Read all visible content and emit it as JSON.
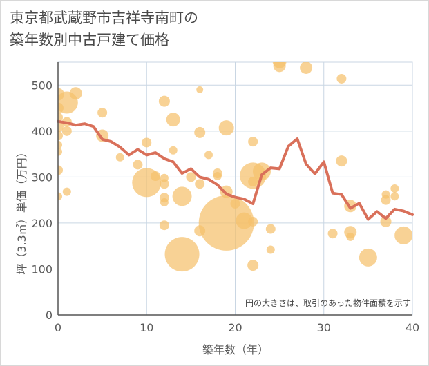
{
  "header": {
    "title_line1": "東京都武蔵野市吉祥寺南町の",
    "title_line2": "築年数別中古戸建て価格"
  },
  "colors": {
    "bubble": "#f5c16c",
    "line": "#d9705a",
    "grid": "#c9d6e3",
    "axis": "#555555"
  },
  "chart_data": {
    "type": "scatter",
    "title": "東京都武蔵野市吉祥寺南町の築年数別中古戸建て価格",
    "xlabel": "築年数（年）",
    "ylabel": "坪（3.3㎡）単価（万円）",
    "xlim": [
      0,
      40
    ],
    "ylim": [
      0,
      550
    ],
    "xticks": [
      0,
      10,
      20,
      30,
      40
    ],
    "yticks": [
      0,
      100,
      200,
      300,
      400,
      500
    ],
    "grid": true,
    "note": "円の大きさは、取引のあった物件面積を示す",
    "bubbles": [
      {
        "x": 0,
        "y": 480,
        "r": 9
      },
      {
        "x": 0,
        "y": 450,
        "r": 8
      },
      {
        "x": 0,
        "y": 430,
        "r": 7
      },
      {
        "x": 0,
        "y": 410,
        "r": 8
      },
      {
        "x": 0,
        "y": 390,
        "r": 7
      },
      {
        "x": 0,
        "y": 370,
        "r": 6
      },
      {
        "x": 0,
        "y": 355,
        "r": 6
      },
      {
        "x": 0,
        "y": 315,
        "r": 7
      },
      {
        "x": 0,
        "y": 258,
        "r": 6
      },
      {
        "x": 1,
        "y": 462,
        "r": 16
      },
      {
        "x": 1,
        "y": 420,
        "r": 7
      },
      {
        "x": 1,
        "y": 400,
        "r": 7
      },
      {
        "x": 1,
        "y": 268,
        "r": 6
      },
      {
        "x": 2,
        "y": 482,
        "r": 9
      },
      {
        "x": 5,
        "y": 440,
        "r": 7
      },
      {
        "x": 5,
        "y": 390,
        "r": 9
      },
      {
        "x": 7,
        "y": 343,
        "r": 6
      },
      {
        "x": 9,
        "y": 327,
        "r": 7
      },
      {
        "x": 10,
        "y": 375,
        "r": 7
      },
      {
        "x": 10,
        "y": 288,
        "r": 21
      },
      {
        "x": 11,
        "y": 302,
        "r": 7
      },
      {
        "x": 12,
        "y": 465,
        "r": 8
      },
      {
        "x": 12,
        "y": 298,
        "r": 6
      },
      {
        "x": 12,
        "y": 285,
        "r": 7
      },
      {
        "x": 12,
        "y": 255,
        "r": 7
      },
      {
        "x": 12,
        "y": 245,
        "r": 6
      },
      {
        "x": 12,
        "y": 195,
        "r": 7
      },
      {
        "x": 13,
        "y": 425,
        "r": 10
      },
      {
        "x": 13,
        "y": 358,
        "r": 6
      },
      {
        "x": 14,
        "y": 258,
        "r": 14
      },
      {
        "x": 14,
        "y": 132,
        "r": 25
      },
      {
        "x": 15,
        "y": 300,
        "r": 7
      },
      {
        "x": 16,
        "y": 490,
        "r": 5
      },
      {
        "x": 16,
        "y": 397,
        "r": 8
      },
      {
        "x": 16,
        "y": 285,
        "r": 7
      },
      {
        "x": 16,
        "y": 183,
        "r": 8
      },
      {
        "x": 17,
        "y": 348,
        "r": 6
      },
      {
        "x": 18,
        "y": 308,
        "r": 7
      },
      {
        "x": 18,
        "y": 302,
        "r": 6
      },
      {
        "x": 19,
        "y": 407,
        "r": 11
      },
      {
        "x": 19,
        "y": 268,
        "r": 9
      },
      {
        "x": 19,
        "y": 200,
        "r": 40
      },
      {
        "x": 20,
        "y": 242,
        "r": 7
      },
      {
        "x": 21,
        "y": 205,
        "r": 12
      },
      {
        "x": 22,
        "y": 377,
        "r": 7
      },
      {
        "x": 22,
        "y": 303,
        "r": 19
      },
      {
        "x": 22,
        "y": 290,
        "r": 7
      },
      {
        "x": 22,
        "y": 203,
        "r": 7
      },
      {
        "x": 22,
        "y": 108,
        "r": 8
      },
      {
        "x": 23,
        "y": 312,
        "r": 13
      },
      {
        "x": 24,
        "y": 187,
        "r": 7
      },
      {
        "x": 24,
        "y": 142,
        "r": 6
      },
      {
        "x": 25,
        "y": 552,
        "r": 10
      },
      {
        "x": 25,
        "y": 542,
        "r": 9
      },
      {
        "x": 28,
        "y": 538,
        "r": 9
      },
      {
        "x": 31,
        "y": 177,
        "r": 7
      },
      {
        "x": 32,
        "y": 514,
        "r": 7
      },
      {
        "x": 32,
        "y": 335,
        "r": 8
      },
      {
        "x": 33,
        "y": 237,
        "r": 9
      },
      {
        "x": 33,
        "y": 180,
        "r": 9
      },
      {
        "x": 33,
        "y": 170,
        "r": 6
      },
      {
        "x": 35,
        "y": 125,
        "r": 13
      },
      {
        "x": 37,
        "y": 262,
        "r": 6
      },
      {
        "x": 37,
        "y": 250,
        "r": 7
      },
      {
        "x": 37,
        "y": 203,
        "r": 8
      },
      {
        "x": 38,
        "y": 275,
        "r": 6
      },
      {
        "x": 38,
        "y": 258,
        "r": 6
      },
      {
        "x": 39,
        "y": 173,
        "r": 13
      }
    ],
    "series": [
      {
        "x": [
          0,
          1,
          2,
          3,
          4,
          5,
          6,
          7,
          8,
          9,
          10,
          11,
          12,
          13,
          14,
          15,
          16,
          17,
          18,
          19,
          20,
          21,
          22,
          23,
          24,
          25,
          26,
          27,
          28,
          29,
          30,
          31,
          32,
          33,
          34,
          35,
          36,
          37,
          38,
          39,
          40
        ],
        "y": [
          421,
          418,
          413,
          416,
          410,
          382,
          377,
          365,
          348,
          360,
          348,
          353,
          340,
          333,
          308,
          318,
          300,
          295,
          283,
          263,
          256,
          252,
          242,
          305,
          320,
          318,
          367,
          383,
          328,
          307,
          333,
          265,
          262,
          232,
          243,
          208,
          225,
          210,
          230,
          226,
          218
        ]
      }
    ]
  }
}
